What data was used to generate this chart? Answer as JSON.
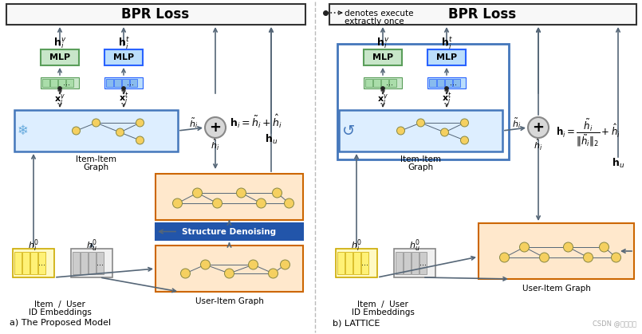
{
  "bg_color": "#ffffff",
  "title_left": "BPR Loss",
  "title_right": "BPR Loss",
  "legend_text1": "denotes execute",
  "legend_text2": "extractly once",
  "label_a": "a) The Proposed Model",
  "label_b": "b) LATTICE",
  "mlp_green_fc": "#c8e6c9",
  "mlp_green_ec": "#5a9e5a",
  "mlp_blue_fc": "#bbdefb",
  "mlp_blue_ec": "#2962ff",
  "ii_box_fc": "#ddeeff",
  "ii_box_ec": "#4477bb",
  "ui_box_fc": "#ffe8cc",
  "ui_box_ec": "#cc6600",
  "sd_box_fc": "#2255aa",
  "sd_box_ec": "#2255aa",
  "plus_fc": "#d8d8d8",
  "plus_ec": "#888888",
  "node_fc": "#f5d060",
  "node_ec": "#888844",
  "embed_yellow_fc": "#fff9c4",
  "embed_yellow_ec": "#ccaa00",
  "embed_bar_fc": "#fff176",
  "embed_gray_fc": "#f0f0f0",
  "embed_gray_ec": "#888888",
  "embed_gbar_fc": "#cccccc",
  "arrow_color": "#556677",
  "bpr_box_fc": "#f8f8f8",
  "bpr_box_ec": "#333333",
  "divider_color": "#bbbbbb",
  "snowflake_color": "#66aadd",
  "recycle_color": "#4477bb",
  "big_border_ec": "#4477bb"
}
